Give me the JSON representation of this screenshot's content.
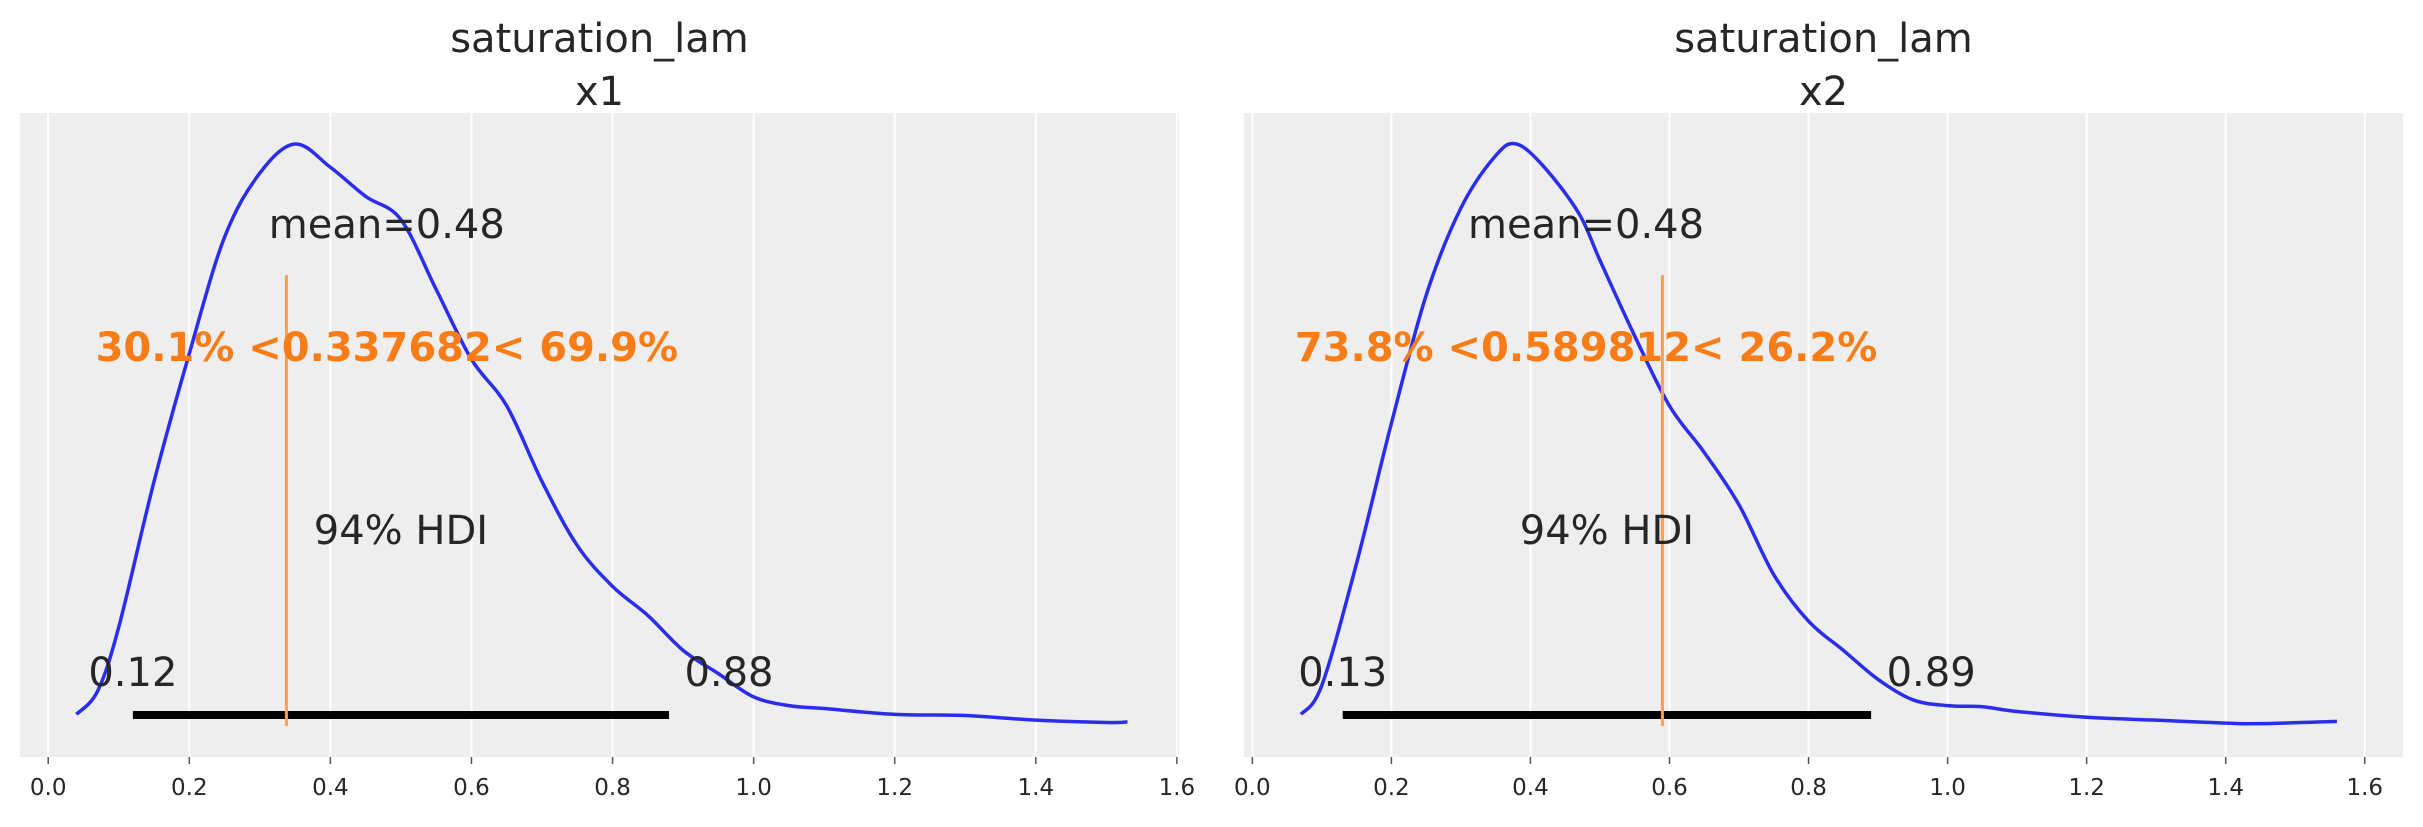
{
  "chart_data": [
    {
      "type": "line",
      "title_line1": "saturation_lam",
      "title_line2": "x1",
      "xlim": [
        -0.04,
        1.603
      ],
      "xticks": [
        "0.0",
        "0.2",
        "0.4",
        "0.6",
        "0.8",
        "1.0",
        "1.2",
        "1.4",
        "1.6"
      ],
      "xtick_values": [
        0,
        0.2,
        0.4,
        0.6,
        0.8,
        1.0,
        1.2,
        1.4,
        1.6
      ],
      "grid": true,
      "density": {
        "x": [
          0.04,
          0.07,
          0.1,
          0.15,
          0.2,
          0.25,
          0.3,
          0.35,
          0.4,
          0.45,
          0.5,
          0.55,
          0.6,
          0.65,
          0.7,
          0.75,
          0.8,
          0.85,
          0.9,
          0.95,
          1.0,
          1.05,
          1.1,
          1.2,
          1.3,
          1.4,
          1.5,
          1.53
        ],
        "y": [
          0.02,
          0.06,
          0.17,
          0.42,
          0.64,
          0.84,
          0.95,
          1.0,
          0.96,
          0.91,
          0.87,
          0.75,
          0.63,
          0.55,
          0.42,
          0.31,
          0.24,
          0.19,
          0.13,
          0.09,
          0.05,
          0.035,
          0.03,
          0.02,
          0.018,
          0.01,
          0.006,
          0.007
        ]
      },
      "mean_label": "mean=0.48",
      "mean": 0.48,
      "ref_val": 0.337682,
      "ref_label": "30.1% <0.337682< 69.9%",
      "hdi_label": "94% HDI",
      "hdi": [
        0.12,
        0.88
      ],
      "hdi_low_label": "0.12",
      "hdi_high_label": "0.88"
    },
    {
      "type": "line",
      "title_line1": "saturation_lam",
      "title_line2": "x2",
      "xlim": [
        -0.012,
        1.655
      ],
      "xticks": [
        "0.0",
        "0.2",
        "0.4",
        "0.6",
        "0.8",
        "1.0",
        "1.2",
        "1.4",
        "1.6"
      ],
      "xtick_values": [
        0,
        0.2,
        0.4,
        0.6,
        0.8,
        1.0,
        1.2,
        1.4,
        1.6
      ],
      "grid": true,
      "density": {
        "x": [
          0.07,
          0.1,
          0.15,
          0.2,
          0.25,
          0.3,
          0.35,
          0.38,
          0.42,
          0.47,
          0.5,
          0.55,
          0.6,
          0.65,
          0.7,
          0.75,
          0.8,
          0.85,
          0.9,
          0.95,
          1.0,
          1.05,
          1.1,
          1.2,
          1.3,
          1.4,
          1.45,
          1.56
        ],
        "y": [
          0.02,
          0.07,
          0.28,
          0.52,
          0.74,
          0.89,
          0.98,
          1.0,
          0.96,
          0.88,
          0.8,
          0.67,
          0.55,
          0.47,
          0.38,
          0.26,
          0.18,
          0.13,
          0.08,
          0.045,
          0.035,
          0.033,
          0.025,
          0.015,
          0.01,
          0.005,
          0.004,
          0.008
        ]
      },
      "mean_label": "mean=0.48",
      "mean": 0.48,
      "ref_val": 0.589812,
      "ref_label": "73.8% <0.589812< 26.2%",
      "hdi_label": "94% HDI",
      "hdi": [
        0.13,
        0.89
      ],
      "hdi_low_label": "0.13",
      "hdi_high_label": "0.89"
    }
  ],
  "colors": {
    "density_line": "#2a2eec",
    "ref_text": "#fa7c17",
    "ref_line": "#f4a05a",
    "hdi_bar": "#000000",
    "axes_background": "#eeeeee",
    "grid": "#ffffff"
  }
}
